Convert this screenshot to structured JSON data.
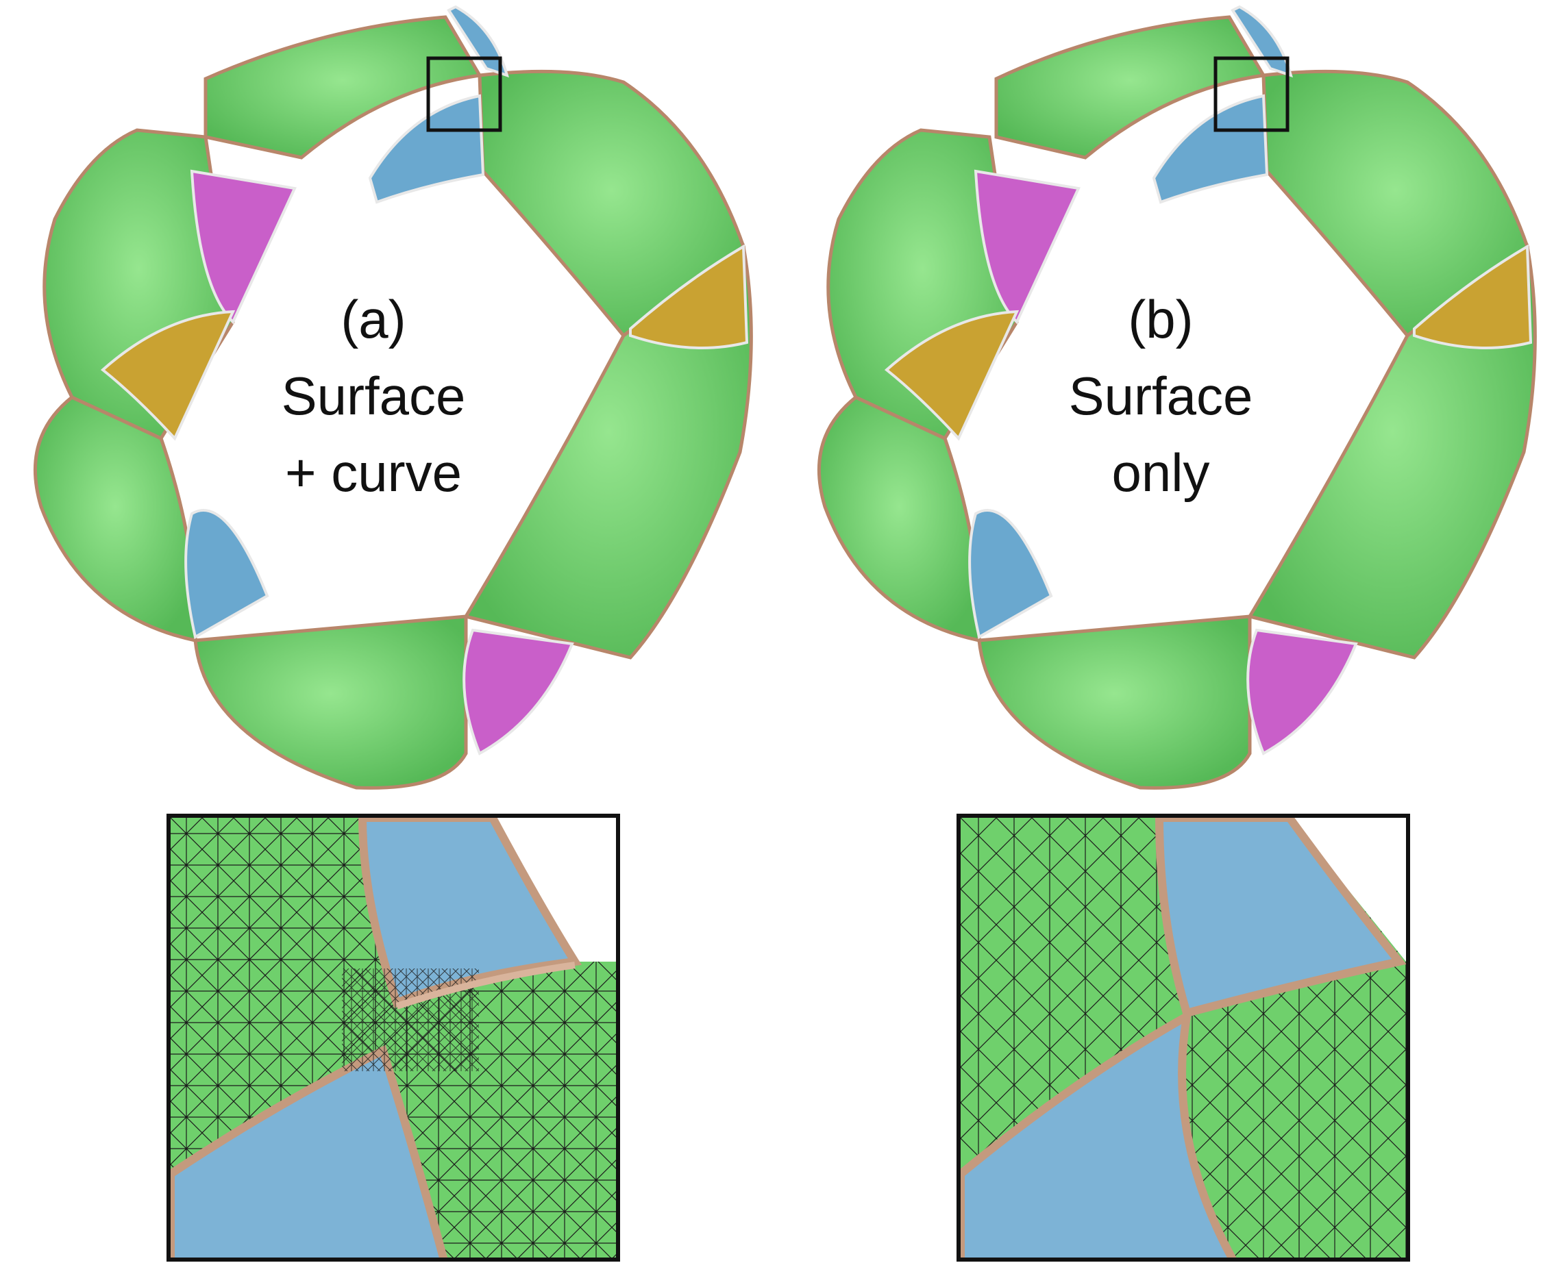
{
  "panels": [
    {
      "id": "a",
      "label_line1": "(a)",
      "label_line2": "Surface",
      "label_line3": "+ curve"
    },
    {
      "id": "b",
      "label_line1": "(b)",
      "label_line2": "Surface",
      "label_line3": "only"
    }
  ],
  "colors": {
    "green": "#7ed97a",
    "green_dark": "#4fae52",
    "blue": "#6aa8cf",
    "purple": "#c95fc9",
    "gold": "#c9a232",
    "edge_copper": "#b8866a",
    "edge_silver": "#e8e8e8",
    "box": "#111111"
  }
}
